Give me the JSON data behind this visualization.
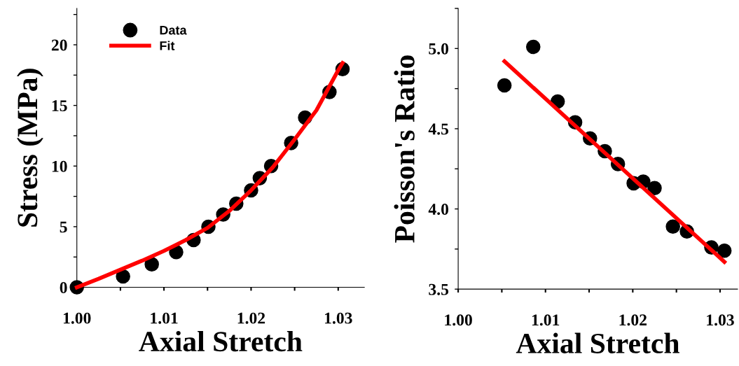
{
  "chart_data": [
    {
      "type": "scatter",
      "xlabel": "Axial Stretch",
      "ylabel": "Stress (MPa)",
      "xlim": [
        1.0,
        1.033
      ],
      "ylim": [
        0,
        23
      ],
      "xticks": [
        {
          "value": 1.0,
          "label": "1.00"
        },
        {
          "value": 1.005,
          "label": null
        },
        {
          "value": 1.01,
          "label": "1.01"
        },
        {
          "value": 1.015,
          "label": null
        },
        {
          "value": 1.02,
          "label": "1.02"
        },
        {
          "value": 1.025,
          "label": null
        },
        {
          "value": 1.03,
          "label": "1.03"
        }
      ],
      "yticks": [
        0,
        {
          "value": 2.5,
          "label": null
        },
        5,
        {
          "value": 7.5,
          "label": null
        },
        10,
        {
          "value": 12.5,
          "label": null
        },
        15,
        {
          "value": 17.5,
          "label": null
        },
        20,
        {
          "value": 22.5,
          "label": null
        }
      ],
      "grid": false,
      "legend": "top left",
      "series": [
        {
          "name": "Data",
          "color": "#000000",
          "marker": "circle",
          "x": [
            1.0,
            1.0053,
            1.0086,
            1.0114,
            1.0134,
            1.0151,
            1.0168,
            1.0183,
            1.02,
            1.021,
            1.0223,
            1.0246,
            1.0262,
            1.029,
            1.0305
          ],
          "values": [
            0,
            0.9,
            1.9,
            2.9,
            3.9,
            5.0,
            6.0,
            6.9,
            8.0,
            9.0,
            10.0,
            11.9,
            14.0,
            16.1,
            18.0
          ]
        },
        {
          "name": "Fit",
          "type": "line",
          "color": "#ff0000",
          "line_style": "solid",
          "x": [
            1.0,
            1.0025,
            1.005,
            1.0075,
            1.01,
            1.0125,
            1.015,
            1.0175,
            1.02,
            1.0225,
            1.025,
            1.0275,
            1.03,
            1.0305
          ],
          "values": [
            0,
            0.7,
            1.45,
            2.2,
            3.0,
            3.9,
            4.9,
            6.3,
            8.0,
            9.9,
            12.2,
            14.6,
            17.9,
            18.5
          ]
        }
      ]
    },
    {
      "type": "scatter",
      "xlabel": "Axial Stretch",
      "ylabel": "Poisson's Ratio",
      "xlim": [
        1.0,
        1.032
      ],
      "ylim": [
        3.5,
        5.25
      ],
      "xticks": [
        {
          "value": 1.0,
          "label": "1.00"
        },
        {
          "value": 1.005,
          "label": null
        },
        {
          "value": 1.01,
          "label": "1.01"
        },
        {
          "value": 1.015,
          "label": null
        },
        {
          "value": 1.02,
          "label": "1.02"
        },
        {
          "value": 1.025,
          "label": null
        },
        {
          "value": 1.03,
          "label": "1.03"
        }
      ],
      "yticks": [
        {
          "value": 3.5,
          "label": "3.5"
        },
        {
          "value": 3.75,
          "label": null
        },
        {
          "value": 4.0,
          "label": "4.0"
        },
        {
          "value": 4.25,
          "label": null
        },
        {
          "value": 4.5,
          "label": "4.5"
        },
        {
          "value": 4.75,
          "label": null
        },
        {
          "value": 5.0,
          "label": "5.0"
        },
        {
          "value": 5.25,
          "label": null
        }
      ],
      "grid": false,
      "legend": false,
      "series": [
        {
          "color": "#000000",
          "marker": "circle",
          "x": [
            1.0053,
            1.0086,
            1.0114,
            1.0134,
            1.0151,
            1.0168,
            1.0183,
            1.0201,
            1.0212,
            1.0225,
            1.0246,
            1.0262,
            1.029,
            1.0305
          ],
          "values": [
            4.77,
            5.01,
            4.67,
            4.54,
            4.44,
            4.36,
            4.28,
            4.16,
            4.17,
            4.13,
            3.89,
            3.86,
            3.76,
            3.74
          ]
        },
        {
          "type": "line",
          "color": "#ff0000",
          "line_style": "solid",
          "x": [
            1.0053,
            1.0305
          ],
          "values": [
            4.92,
            3.67
          ]
        }
      ]
    }
  ]
}
